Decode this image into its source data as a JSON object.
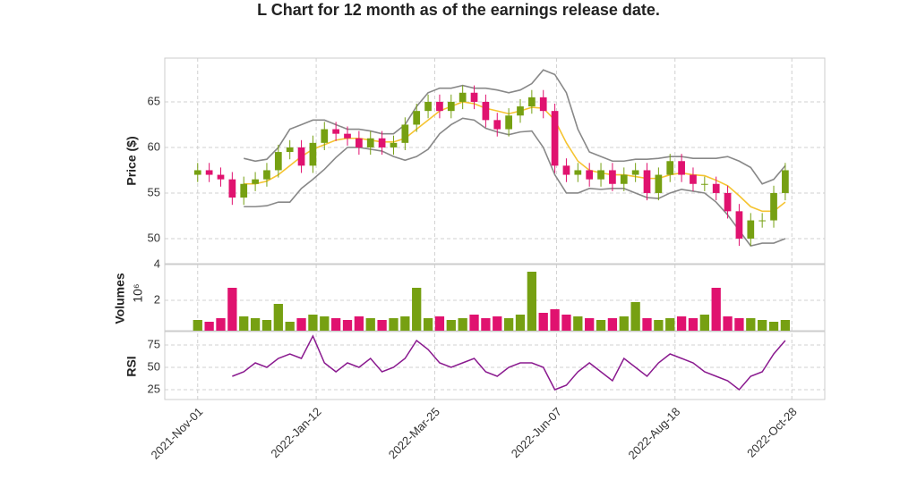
{
  "chart_data": [
    {
      "type": "candlestick",
      "title": "L Chart for 12 month as of the earnings release date.",
      "y_label": "Price ($)",
      "x": [
        "2021-11-01",
        "2021-11-08",
        "2021-11-15",
        "2021-11-22",
        "2021-11-29",
        "2021-12-06",
        "2021-12-13",
        "2021-12-20",
        "2021-12-27",
        "2022-01-03",
        "2022-01-10",
        "2022-01-17",
        "2022-01-24",
        "2022-01-31",
        "2022-02-07",
        "2022-02-14",
        "2022-02-21",
        "2022-02-28",
        "2022-03-07",
        "2022-03-14",
        "2022-03-21",
        "2022-03-28",
        "2022-04-04",
        "2022-04-11",
        "2022-04-18",
        "2022-04-25",
        "2022-05-02",
        "2022-05-09",
        "2022-05-16",
        "2022-05-23",
        "2022-05-30",
        "2022-06-06",
        "2022-06-13",
        "2022-06-20",
        "2022-06-27",
        "2022-07-04",
        "2022-07-11",
        "2022-07-18",
        "2022-07-25",
        "2022-08-01",
        "2022-08-08",
        "2022-08-15",
        "2022-08-22",
        "2022-08-29",
        "2022-09-05",
        "2022-09-12",
        "2022-09-19",
        "2022-09-26",
        "2022-10-03",
        "2022-10-10",
        "2022-10-17",
        "2022-10-24"
      ],
      "open": [
        57,
        57.5,
        57,
        56.5,
        54.5,
        56,
        56.5,
        57.5,
        59.5,
        60,
        58,
        60.5,
        62,
        61.5,
        61,
        60,
        61,
        60,
        60.5,
        62.5,
        64,
        65,
        64,
        65,
        66,
        65,
        63,
        62,
        63.5,
        64.5,
        65.5,
        64,
        58,
        57,
        57.5,
        56.5,
        57.5,
        56,
        57,
        57.5,
        55,
        57,
        58.5,
        57,
        56,
        56,
        55,
        53,
        50,
        52,
        52,
        55
      ],
      "high": [
        58.3,
        58.3,
        57.8,
        57.3,
        56.8,
        57.3,
        58.3,
        60.3,
        60.8,
        60.8,
        61.3,
        62.8,
        62.8,
        62.3,
        61.8,
        61.8,
        61.8,
        61.3,
        63.3,
        64.8,
        65.8,
        65.8,
        65.8,
        66.8,
        66.8,
        65.8,
        63.8,
        64.3,
        65.3,
        66.3,
        66.3,
        64.8,
        58.8,
        58.3,
        58.3,
        58.3,
        58.3,
        57.8,
        58.3,
        58.3,
        57.8,
        59.3,
        59.3,
        57.8,
        56.8,
        56.8,
        55.8,
        53.8,
        52.8,
        52.8,
        55.8,
        58.3
      ],
      "low": [
        56.2,
        56.2,
        55.7,
        53.7,
        53.7,
        55.2,
        55.7,
        56.7,
        58.7,
        57.2,
        57.2,
        59.7,
        60.7,
        60.2,
        59.2,
        59.2,
        59.2,
        59.2,
        59.7,
        61.7,
        63.2,
        63.2,
        63.2,
        64.2,
        64.2,
        62.2,
        61.2,
        61.2,
        62.7,
        63.7,
        63.2,
        57.2,
        56.2,
        56.2,
        55.7,
        55.7,
        55.2,
        55.2,
        56.2,
        54.2,
        54.2,
        56.2,
        56.2,
        55.2,
        55.2,
        54.2,
        52.2,
        49.2,
        49.2,
        51.2,
        51.2,
        54.2
      ],
      "close": [
        57.5,
        57,
        56.5,
        54.5,
        56,
        56.5,
        57.5,
        59.5,
        60,
        58,
        60.5,
        62,
        61.5,
        61,
        60,
        61,
        60,
        60.5,
        62.5,
        64,
        65,
        64,
        65,
        66,
        65,
        63,
        62,
        63.5,
        64.5,
        65.5,
        64,
        58,
        57,
        57.5,
        56.5,
        57.5,
        56,
        57,
        57.5,
        55,
        57,
        58.5,
        57,
        56,
        56,
        55,
        53,
        50,
        52,
        52,
        55,
        57.5
      ],
      "up_color": "#76a012",
      "down_color": "#e0126f",
      "bands": [
        {
          "color": "#888888",
          "values": [
            null,
            null,
            null,
            null,
            58.8,
            58.5,
            58.7,
            60,
            62,
            62.5,
            63,
            63,
            62.5,
            62,
            62,
            61.8,
            61.5,
            61.5,
            62.5,
            64.5,
            66,
            66.5,
            66.5,
            66.8,
            66.5,
            66.5,
            66.3,
            66,
            66.3,
            67,
            68.5,
            68,
            66,
            62,
            59.5,
            59,
            58.5,
            58.5,
            58.7,
            58.7,
            58.8,
            59,
            59,
            58.8,
            58.8,
            58.8,
            59,
            58.5,
            57.8,
            56,
            56.5,
            58
          ]
        },
        {
          "color": "#f5c431",
          "values": [
            null,
            null,
            null,
            null,
            56,
            56,
            56.3,
            57,
            58,
            59,
            59.8,
            60.3,
            60.8,
            61,
            61,
            60.8,
            60.6,
            60.6,
            61,
            62,
            63,
            64,
            64.5,
            65,
            64.8,
            64.3,
            64,
            63.7,
            64,
            64.4,
            64.3,
            63,
            60.5,
            58.5,
            57.5,
            57.2,
            57,
            57,
            56.8,
            56.6,
            56.6,
            57,
            57.2,
            57,
            56.9,
            56.4,
            55.8,
            54.7,
            53.5,
            53,
            53,
            54
          ]
        },
        {
          "color": "#888888",
          "values": [
            null,
            null,
            null,
            null,
            53.5,
            53.5,
            53.6,
            54,
            54,
            55.5,
            56.5,
            57.6,
            58.9,
            60,
            60,
            59.8,
            59.6,
            59,
            58.6,
            59,
            59.8,
            61.5,
            62.5,
            63.2,
            63,
            62.1,
            61.7,
            61.4,
            61.7,
            61.8,
            60,
            57,
            55,
            55,
            55.5,
            55.4,
            55.5,
            55.5,
            55,
            54.5,
            54.4,
            55,
            55.4,
            55.2,
            55,
            54,
            52.6,
            50.9,
            49.2,
            49.5,
            49.5,
            50
          ]
        }
      ],
      "ylim": [
        47.25,
        69.8
      ],
      "yticks": [
        50,
        55,
        60,
        65
      ],
      "grid": true
    },
    {
      "type": "bar",
      "y_label": "Volumes",
      "y_scale_label": "10⁶",
      "x": [
        "2021-11-01",
        "2021-11-08",
        "2021-11-15",
        "2021-11-22",
        "2021-11-29",
        "2021-12-06",
        "2021-12-13",
        "2021-12-20",
        "2021-12-27",
        "2022-01-03",
        "2022-01-10",
        "2022-01-17",
        "2022-01-24",
        "2022-01-31",
        "2022-02-07",
        "2022-02-14",
        "2022-02-21",
        "2022-02-28",
        "2022-03-07",
        "2022-03-14",
        "2022-03-21",
        "2022-03-28",
        "2022-04-04",
        "2022-04-11",
        "2022-04-18",
        "2022-04-25",
        "2022-05-02",
        "2022-05-09",
        "2022-05-16",
        "2022-05-23",
        "2022-05-30",
        "2022-06-06",
        "2022-06-13",
        "2022-06-20",
        "2022-06-27",
        "2022-07-04",
        "2022-07-11",
        "2022-07-18",
        "2022-07-25",
        "2022-08-01",
        "2022-08-08",
        "2022-08-15",
        "2022-08-22",
        "2022-08-29",
        "2022-09-05",
        "2022-09-12",
        "2022-09-19",
        "2022-09-26",
        "2022-10-03",
        "2022-10-10",
        "2022-10-17",
        "2022-10-24"
      ],
      "values": [
        0.9,
        0.8,
        1.0,
        2.7,
        1.1,
        1.0,
        0.9,
        1.8,
        0.8,
        1.0,
        1.2,
        1.1,
        1.0,
        0.9,
        1.1,
        1.0,
        0.9,
        1.0,
        1.1,
        2.7,
        1.0,
        1.1,
        0.9,
        1.0,
        1.2,
        1.0,
        1.1,
        1.0,
        1.2,
        3.6,
        1.3,
        1.5,
        1.2,
        1.1,
        1.0,
        0.9,
        1.0,
        1.1,
        1.9,
        1.0,
        0.9,
        1.0,
        1.1,
        1.0,
        1.2,
        2.7,
        1.1,
        1.0,
        1.0,
        0.9,
        0.8,
        0.9
      ],
      "ylim": [
        0.3,
        4
      ],
      "yticks": [
        2,
        4
      ],
      "grid": true
    },
    {
      "type": "line",
      "y_label": "RSI",
      "color": "#8a1a8f",
      "x": [
        "2021-11-01",
        "2021-11-08",
        "2021-11-15",
        "2021-11-22",
        "2021-11-29",
        "2021-12-06",
        "2021-12-13",
        "2021-12-20",
        "2021-12-27",
        "2022-01-03",
        "2022-01-10",
        "2022-01-17",
        "2022-01-24",
        "2022-01-31",
        "2022-02-07",
        "2022-02-14",
        "2022-02-21",
        "2022-02-28",
        "2022-03-07",
        "2022-03-14",
        "2022-03-21",
        "2022-03-28",
        "2022-04-04",
        "2022-04-11",
        "2022-04-18",
        "2022-04-25",
        "2022-05-02",
        "2022-05-09",
        "2022-05-16",
        "2022-05-23",
        "2022-05-30",
        "2022-06-06",
        "2022-06-13",
        "2022-06-20",
        "2022-06-27",
        "2022-07-04",
        "2022-07-11",
        "2022-07-18",
        "2022-07-25",
        "2022-08-01",
        "2022-08-08",
        "2022-08-15",
        "2022-08-22",
        "2022-08-29",
        "2022-09-05",
        "2022-09-12",
        "2022-09-19",
        "2022-09-26",
        "2022-10-03",
        "2022-10-10",
        "2022-10-17",
        "2022-10-24"
      ],
      "values": [
        null,
        null,
        null,
        40,
        45,
        55,
        50,
        60,
        65,
        60,
        85,
        55,
        45,
        55,
        50,
        60,
        45,
        50,
        60,
        80,
        70,
        55,
        50,
        55,
        60,
        45,
        40,
        50,
        55,
        55,
        50,
        25,
        30,
        45,
        55,
        45,
        35,
        60,
        50,
        40,
        55,
        65,
        60,
        55,
        45,
        40,
        35,
        25,
        40,
        45,
        65,
        80
      ],
      "ylim": [
        14,
        90
      ],
      "yticks": [
        25,
        50,
        75
      ],
      "grid": true,
      "xlim": [
        "2021-10-12",
        "2022-11-17"
      ],
      "xticks": [
        {
          "value": "2021-11-01",
          "label": "2021-Nov-01"
        },
        {
          "value": "2022-01-12",
          "label": "2022-Jan-12"
        },
        {
          "value": "2022-03-25",
          "label": "2022-Mar-25"
        },
        {
          "value": "2022-06-07",
          "label": "2022-Jun-07"
        },
        {
          "value": "2022-08-18",
          "label": "2022-Aug-18"
        },
        {
          "value": "2022-10-28",
          "label": "2022-Oct-28"
        }
      ]
    }
  ]
}
